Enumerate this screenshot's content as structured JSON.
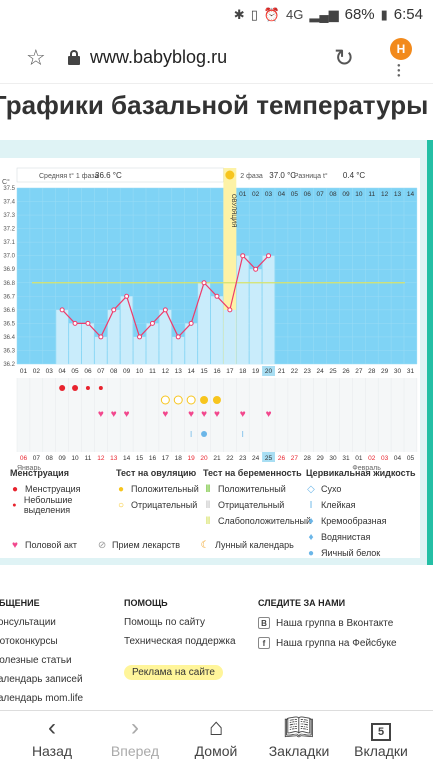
{
  "status": {
    "battery": "68%",
    "time": "6:54",
    "network": "4G"
  },
  "browser": {
    "url": "www.babyblog.ru",
    "avatar_letter": "Н"
  },
  "page": {
    "title": "Графики базальной температуры"
  },
  "chart_data": {
    "type": "line",
    "ylabel": "С°",
    "ylim": [
      36.2,
      37.5
    ],
    "y_ticks": [
      "37.5",
      "37.4",
      "37.3",
      "37.2",
      "37.1",
      "37.0",
      "36.9",
      "36.8",
      "36.7",
      "36.6",
      "36.5",
      "36.4",
      "36.3",
      "36.2"
    ],
    "x_days": [
      "01",
      "02",
      "03",
      "04",
      "05",
      "06",
      "07",
      "08",
      "09",
      "10",
      "11",
      "12",
      "13",
      "14",
      "15",
      "16",
      "17",
      "18",
      "19",
      "20",
      "21",
      "22",
      "23",
      "24",
      "25",
      "26",
      "27",
      "28",
      "29",
      "30",
      "31"
    ],
    "phase2_days": [
      "01",
      "02",
      "03",
      "04",
      "05",
      "06",
      "07",
      "08",
      "09",
      "10",
      "11",
      "12",
      "13",
      "14"
    ],
    "phase1_label": "Средняя t° 1 фаза",
    "phase1_value": "36.6 °C",
    "phase2_label": "2 фаза",
    "phase2_value": "37.0 °C",
    "diff_label": "Разница t°",
    "diff_value": "0.4 °C",
    "ovulation_label": "ОВУЛЯЦИЯ",
    "ovulation_day": 17,
    "highlight_day": 20,
    "coverline": 36.8,
    "series": [
      {
        "days": [
          4,
          5,
          6,
          7,
          8,
          9,
          10,
          11,
          12,
          13,
          14,
          15,
          16,
          17,
          18,
          19,
          20
        ],
        "values": [
          36.6,
          36.5,
          36.5,
          36.4,
          36.6,
          36.7,
          36.4,
          36.5,
          36.6,
          36.4,
          36.5,
          36.8,
          36.7,
          36.6,
          37.0,
          36.9,
          37.0
        ]
      }
    ],
    "menstruation_days": [
      4,
      5,
      6,
      7
    ],
    "menstruation_light_days": [
      6,
      7
    ],
    "ovulation_test_negative_days": [
      12,
      13,
      14
    ],
    "ovulation_test_positive_days": [
      15,
      16
    ],
    "intercourse_days": [
      7,
      8,
      9,
      12,
      14,
      15,
      16,
      18,
      20
    ],
    "pregnancy_test_days": [
      14,
      18
    ],
    "fluid_egg_white_days": [
      15
    ],
    "cycle_dates": [
      "06",
      "07",
      "08",
      "09",
      "10",
      "11",
      "12",
      "13",
      "14",
      "15",
      "16",
      "17",
      "18",
      "19",
      "20",
      "21",
      "22",
      "23",
      "24",
      "25",
      "26",
      "27",
      "28",
      "29",
      "30",
      "31",
      "01",
      "02",
      "03",
      "04",
      "05"
    ],
    "cycle_red_dates": [
      "06",
      "12",
      "13",
      "19",
      "20",
      "26",
      "27",
      "02",
      "03"
    ],
    "cycle_highlight_date": "25",
    "month_left": "Январь",
    "month_right": "Февраль"
  },
  "legend": {
    "menstruation": {
      "head": "Менструация",
      "items": [
        "Менструация",
        "Небольшие выделения"
      ]
    },
    "ovulation_test": {
      "head": "Тест на овуляцию",
      "items": [
        "Положительный",
        "Отрицательный"
      ]
    },
    "pregnancy_test": {
      "head": "Тест на беременность",
      "items": [
        "Положительный",
        "Отрицательный",
        "Слабоположительный"
      ]
    },
    "fluid": {
      "head": "Цервикальная жидкость",
      "items": [
        "Сухо",
        "Клейкая",
        "Кремообразная",
        "Водянистая",
        "Яичный белок"
      ]
    },
    "bottom": [
      "Половой акт",
      "Прием лекарств",
      "Лунный календарь"
    ]
  },
  "footer": {
    "col1": {
      "head": "ОБЩЕНИЕ",
      "links": [
        "Консультации",
        "Фотоконкурсы",
        "Полезные статьи",
        "Календарь записей",
        "Календарь mom.life"
      ]
    },
    "col2": {
      "head": "ПОМОЩЬ",
      "links": [
        "Помощь по сайту",
        "Техническая поддержка",
        "Реклама на сайте"
      ]
    },
    "col3": {
      "head": "СЛЕДИТЕ ЗА НАМИ",
      "links": [
        "Наша группа в Вконтакте",
        "Наша группа на Фейсбуке"
      ]
    }
  },
  "nav": {
    "back": "Назад",
    "forward": "Вперед",
    "home": "Домой",
    "bookmarks": "Закладки",
    "tabs": "Вкладки",
    "tab_count": "5"
  },
  "colors": {
    "bar": "#c9ecfb",
    "chart_bg": "#7fd3f5",
    "line": "#ee3b6b",
    "ovulation": "#fdf2a6",
    "coverline": "#d8e36a",
    "accent": "#24bfa5"
  }
}
